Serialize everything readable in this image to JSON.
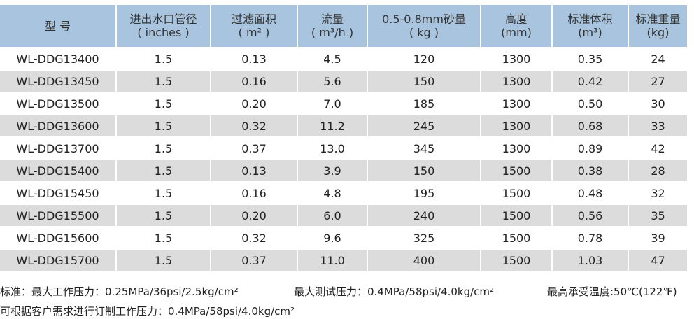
{
  "table": {
    "headers": [
      {
        "line1": "型  号",
        "line2": ""
      },
      {
        "line1": "进出水口管径",
        "line2": "( inches )"
      },
      {
        "line1": "过滤面积",
        "line2": "( m² )"
      },
      {
        "line1": "流量",
        "line2": "( m³/h )"
      },
      {
        "line1": "0.5-0.8mm砂量",
        "line2": "( kg )"
      },
      {
        "line1": "高度",
        "line2": "(mm)"
      },
      {
        "line1": "标准体积",
        "line2": "(m³)"
      },
      {
        "line1": "标准重量",
        "line2": "(kg)"
      }
    ],
    "rows": [
      [
        "WL-DDG13400",
        "1.5",
        "0.13",
        "4.5",
        "120",
        "1300",
        "0.35",
        "24"
      ],
      [
        "WL-DDG13450",
        "1.5",
        "0.16",
        "5.6",
        "150",
        "1300",
        "0.42",
        "27"
      ],
      [
        "WL-DDG13500",
        "1.5",
        "0.20",
        "7.0",
        "185",
        "1300",
        "0.50",
        "30"
      ],
      [
        "WL-DDG13600",
        "1.5",
        "0.32",
        "11.2",
        "245",
        "1300",
        "0.68",
        "33"
      ],
      [
        "WL-DDG13700",
        "1.5",
        "0.37",
        "13.0",
        "345",
        "1300",
        "0.89",
        "42"
      ],
      [
        "WL-DDG15400",
        "1.5",
        "0.13",
        "3.9",
        "150",
        "1500",
        "0.38",
        "28"
      ],
      [
        "WL-DDG15450",
        "1.5",
        "0.16",
        "4.8",
        "195",
        "1500",
        "0.48",
        "32"
      ],
      [
        "WL-DDG15500",
        "1.5",
        "0.20",
        "6.0",
        "240",
        "1500",
        "0.56",
        "35"
      ],
      [
        "WL-DDG15600",
        "1.5",
        "0.32",
        "9.6",
        "325",
        "1500",
        "0.78",
        "39"
      ],
      [
        "WL-DDG15700",
        "1.5",
        "0.37",
        "11.0",
        "400",
        "1500",
        "1.03",
        "47"
      ]
    ]
  },
  "notes": {
    "standard": "标准：最大工作压力：0.25MPa/36psi/2.5kg/cm²",
    "max_test": "最大测试压力：0.4MPa/58psi/4.0kg/cm²",
    "max_temp": "最高承受温度:50℃(122℉)",
    "custom": "可根据客户需求进行订制工作压力：0.4MPa/58psi/4.0kg/cm²"
  },
  "colors": {
    "header_bg": "#a9c4de",
    "row_even_bg": "#dcdcdc",
    "row_odd_bg": "#ffffff"
  }
}
